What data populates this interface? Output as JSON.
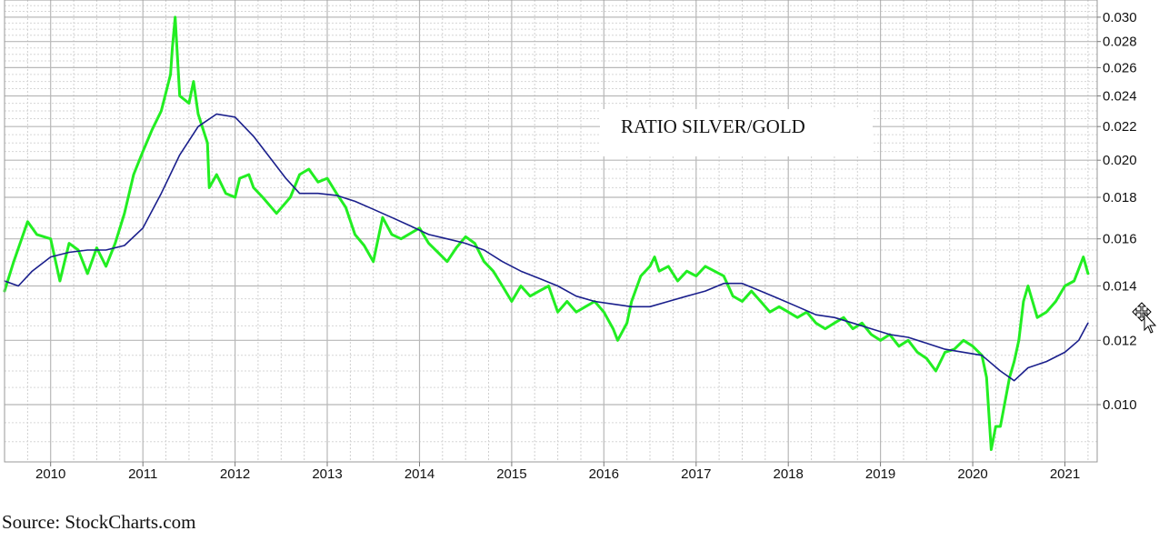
{
  "chart_data": {
    "type": "line",
    "title": "",
    "xlabel": "",
    "ylabel": "",
    "annotation": "RATIO SILVER/GOLD",
    "y_scale": "log",
    "ylim": [
      0.0085,
      0.0315
    ],
    "xlim": [
      2009.5,
      2021.35
    ],
    "grid": true,
    "legend": "none",
    "x_ticks": [
      {
        "label": "2010",
        "value": 2010
      },
      {
        "label": "2011",
        "value": 2011
      },
      {
        "label": "2012",
        "value": 2012
      },
      {
        "label": "2013",
        "value": 2013
      },
      {
        "label": "2014",
        "value": 2014
      },
      {
        "label": "2015",
        "value": 2015
      },
      {
        "label": "2016",
        "value": 2016
      },
      {
        "label": "2017",
        "value": 2017
      },
      {
        "label": "2018",
        "value": 2018
      },
      {
        "label": "2019",
        "value": 2019
      },
      {
        "label": "2020",
        "value": 2020
      },
      {
        "label": "2021",
        "value": 2021
      }
    ],
    "y_ticks": [
      {
        "label": "0.010",
        "value": 0.01
      },
      {
        "label": "0.012",
        "value": 0.012
      },
      {
        "label": "0.014",
        "value": 0.014
      },
      {
        "label": "0.016",
        "value": 0.016
      },
      {
        "label": "0.018",
        "value": 0.018
      },
      {
        "label": "0.020",
        "value": 0.02
      },
      {
        "label": "0.022",
        "value": 0.022
      },
      {
        "label": "0.024",
        "value": 0.024
      },
      {
        "label": "0.026",
        "value": 0.026
      },
      {
        "label": "0.028",
        "value": 0.028
      },
      {
        "label": "0.030",
        "value": 0.03
      }
    ],
    "series": [
      {
        "color": "#22ee22",
        "x": [
          2009.5,
          2009.6,
          2009.75,
          2009.85,
          2010.0,
          2010.1,
          2010.2,
          2010.3,
          2010.4,
          2010.5,
          2010.6,
          2010.7,
          2010.8,
          2010.9,
          2011.0,
          2011.1,
          2011.2,
          2011.3,
          2011.32,
          2011.35,
          2011.4,
          2011.5,
          2011.55,
          2011.6,
          2011.7,
          2011.72,
          2011.8,
          2011.9,
          2012.0,
          2012.05,
          2012.15,
          2012.2,
          2012.3,
          2012.45,
          2012.6,
          2012.7,
          2012.8,
          2012.9,
          2013.0,
          2013.1,
          2013.2,
          2013.3,
          2013.4,
          2013.5,
          2013.6,
          2013.7,
          2013.8,
          2014.0,
          2014.1,
          2014.2,
          2014.3,
          2014.4,
          2014.5,
          2014.6,
          2014.7,
          2014.8,
          2014.9,
          2015.0,
          2015.1,
          2015.2,
          2015.3,
          2015.4,
          2015.5,
          2015.6,
          2015.7,
          2015.8,
          2015.9,
          2016.0,
          2016.1,
          2016.15,
          2016.25,
          2016.3,
          2016.4,
          2016.5,
          2016.55,
          2016.6,
          2016.7,
          2016.8,
          2016.9,
          2017.0,
          2017.1,
          2017.2,
          2017.3,
          2017.4,
          2017.5,
          2017.6,
          2017.7,
          2017.8,
          2017.9,
          2018.0,
          2018.1,
          2018.2,
          2018.3,
          2018.4,
          2018.5,
          2018.6,
          2018.7,
          2018.8,
          2018.9,
          2019.0,
          2019.1,
          2019.2,
          2019.3,
          2019.4,
          2019.5,
          2019.6,
          2019.7,
          2019.8,
          2019.9,
          2020.0,
          2020.1,
          2020.15,
          2020.2,
          2020.25,
          2020.3,
          2020.4,
          2020.45,
          2020.5,
          2020.55,
          2020.6,
          2020.7,
          2020.8,
          2020.9,
          2021.0,
          2021.1,
          2021.2,
          2021.25
        ],
        "values": [
          0.0138,
          0.015,
          0.0168,
          0.0162,
          0.016,
          0.0142,
          0.0158,
          0.0155,
          0.0145,
          0.0156,
          0.0148,
          0.0158,
          0.0172,
          0.0192,
          0.0205,
          0.0218,
          0.023,
          0.0255,
          0.0275,
          0.03,
          0.024,
          0.0235,
          0.025,
          0.0228,
          0.021,
          0.0185,
          0.0192,
          0.0182,
          0.018,
          0.019,
          0.0192,
          0.0185,
          0.018,
          0.0172,
          0.018,
          0.0192,
          0.0195,
          0.0188,
          0.019,
          0.0182,
          0.0175,
          0.0162,
          0.0157,
          0.015,
          0.017,
          0.0162,
          0.016,
          0.0165,
          0.0158,
          0.0154,
          0.015,
          0.0156,
          0.0161,
          0.0158,
          0.015,
          0.0146,
          0.014,
          0.0134,
          0.014,
          0.0136,
          0.0138,
          0.014,
          0.013,
          0.0134,
          0.013,
          0.0132,
          0.0134,
          0.013,
          0.0124,
          0.012,
          0.0126,
          0.0134,
          0.0144,
          0.0148,
          0.0152,
          0.0146,
          0.0148,
          0.0142,
          0.0146,
          0.0144,
          0.0148,
          0.0146,
          0.0144,
          0.0136,
          0.0134,
          0.0138,
          0.0134,
          0.013,
          0.0132,
          0.013,
          0.0128,
          0.013,
          0.0126,
          0.0124,
          0.0126,
          0.0128,
          0.0124,
          0.0126,
          0.0122,
          0.012,
          0.0122,
          0.0118,
          0.012,
          0.0116,
          0.0114,
          0.011,
          0.0116,
          0.0117,
          0.012,
          0.0118,
          0.0115,
          0.0108,
          0.0088,
          0.0094,
          0.0094,
          0.0108,
          0.0113,
          0.012,
          0.0134,
          0.014,
          0.0128,
          0.013,
          0.0134,
          0.014,
          0.0142,
          0.0152,
          0.0145
        ]
      },
      {
        "color": "#1a1f8c",
        "x": [
          2009.5,
          2009.65,
          2009.8,
          2010.0,
          2010.2,
          2010.4,
          2010.6,
          2010.8,
          2011.0,
          2011.2,
          2011.4,
          2011.6,
          2011.8,
          2012.0,
          2012.2,
          2012.4,
          2012.55,
          2012.7,
          2012.9,
          2013.1,
          2013.3,
          2013.5,
          2013.7,
          2013.9,
          2014.1,
          2014.3,
          2014.5,
          2014.7,
          2014.9,
          2015.1,
          2015.3,
          2015.5,
          2015.7,
          2015.9,
          2016.1,
          2016.3,
          2016.5,
          2016.7,
          2016.9,
          2017.1,
          2017.3,
          2017.5,
          2017.7,
          2017.9,
          2018.1,
          2018.3,
          2018.5,
          2018.7,
          2018.9,
          2019.1,
          2019.3,
          2019.5,
          2019.7,
          2019.9,
          2020.1,
          2020.3,
          2020.45,
          2020.6,
          2020.8,
          2021.0,
          2021.15,
          2021.25
        ],
        "values": [
          0.0142,
          0.014,
          0.0146,
          0.0152,
          0.0154,
          0.0155,
          0.0155,
          0.0157,
          0.0165,
          0.0182,
          0.0203,
          0.022,
          0.0228,
          0.0226,
          0.0214,
          0.02,
          0.019,
          0.0182,
          0.0182,
          0.0181,
          0.0178,
          0.0174,
          0.017,
          0.0166,
          0.0162,
          0.016,
          0.0158,
          0.0155,
          0.015,
          0.0146,
          0.0143,
          0.014,
          0.0136,
          0.0134,
          0.0133,
          0.0132,
          0.0132,
          0.0134,
          0.0136,
          0.0138,
          0.0141,
          0.0141,
          0.0138,
          0.0135,
          0.0132,
          0.0129,
          0.0128,
          0.0126,
          0.0124,
          0.0122,
          0.0121,
          0.0119,
          0.0117,
          0.0116,
          0.0115,
          0.011,
          0.0107,
          0.0111,
          0.0113,
          0.0116,
          0.012,
          0.0126
        ]
      }
    ]
  },
  "source_text": "Source: StockCharts.com"
}
